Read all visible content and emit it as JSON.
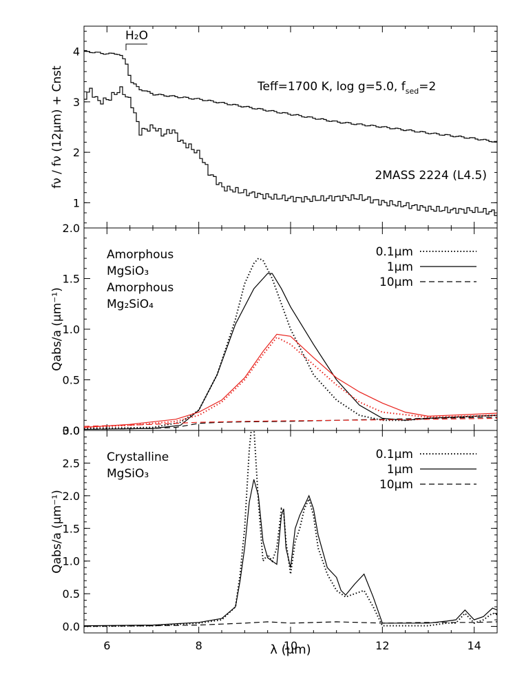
{
  "chart_data": [
    {
      "type": "line",
      "ylabel": "fν / fν (12μm) + Cnst",
      "xlim": [
        5.5,
        14.5
      ],
      "ylim": [
        0.5,
        4.5
      ],
      "yticks": [
        "1",
        "2",
        "3",
        "4"
      ],
      "grid": false,
      "annotations": {
        "h2o": "H₂O",
        "model_label": "Teff=1700 K, log g=5.0, f",
        "model_sub": "sed",
        "model_tail": "=2",
        "object_label": "2MASS 2224 (L4.5)"
      },
      "series": [
        {
          "style": "histogram",
          "color": "#000000",
          "x": [
            5.5,
            5.8,
            6.0,
            6.2,
            6.3,
            6.4,
            6.5,
            6.7,
            7.0,
            7.5,
            8.0,
            9.0,
            10.0,
            11.0,
            12.0,
            13.0,
            14.0,
            14.5
          ],
          "y": [
            4.0,
            3.97,
            3.95,
            3.96,
            3.9,
            3.75,
            3.4,
            3.25,
            3.15,
            3.1,
            3.05,
            2.9,
            2.75,
            2.6,
            2.5,
            2.38,
            2.27,
            2.2
          ]
        },
        {
          "style": "histogram",
          "color": "#000000",
          "x": [
            5.5,
            5.6,
            5.8,
            6.0,
            6.2,
            6.3,
            6.4,
            6.5,
            6.6,
            6.7,
            6.8,
            7.0,
            7.2,
            7.4,
            7.6,
            7.8,
            8.0,
            8.2,
            8.5,
            9.0,
            9.5,
            10.0,
            10.5,
            11.0,
            11.5,
            12.0,
            12.5,
            13.0,
            13.5,
            14.0,
            14.5
          ],
          "y": [
            3.1,
            3.25,
            3.0,
            3.05,
            3.2,
            3.25,
            3.1,
            3.0,
            2.7,
            2.4,
            2.45,
            2.5,
            2.35,
            2.45,
            2.2,
            2.1,
            1.95,
            1.6,
            1.3,
            1.2,
            1.12,
            1.08,
            1.07,
            1.1,
            1.1,
            1.0,
            0.95,
            0.88,
            0.85,
            0.85,
            0.8
          ]
        }
      ]
    },
    {
      "type": "line",
      "ylabel": "Qabs/a (μm⁻¹)",
      "xlim": [
        5.5,
        14.5
      ],
      "ylim": [
        0,
        2.0
      ],
      "yticks": [
        "0.0",
        "0.5",
        "1.0",
        "1.5",
        "2.0"
      ],
      "grid": false,
      "annotations": {
        "line1": "Amorphous",
        "line2": "MgSiO₃",
        "line3": "Amorphous",
        "line4": "Mg₂SiO₄"
      },
      "legend": [
        {
          "label": "0.1μm",
          "dash": "dotted"
        },
        {
          "label": "1μm",
          "dash": "solid"
        },
        {
          "label": "10μm",
          "dash": "dashed"
        }
      ],
      "series": [
        {
          "material": "Amorphous MgSiO₃",
          "grain": "0.1μm",
          "color": "#000000",
          "dash": "dotted",
          "x": [
            5.5,
            7.0,
            7.6,
            8.0,
            8.4,
            8.8,
            9.0,
            9.2,
            9.3,
            9.4,
            9.6,
            9.8,
            10.0,
            10.5,
            11.0,
            11.5,
            12.0,
            12.5,
            13.0,
            14.5
          ],
          "y": [
            0.02,
            0.03,
            0.08,
            0.2,
            0.55,
            1.1,
            1.45,
            1.65,
            1.7,
            1.68,
            1.5,
            1.25,
            1.0,
            0.55,
            0.3,
            0.15,
            0.1,
            0.1,
            0.12,
            0.15
          ]
        },
        {
          "material": "Amorphous MgSiO₃",
          "grain": "1μm",
          "color": "#000000",
          "dash": "solid",
          "x": [
            5.5,
            7.0,
            7.6,
            8.0,
            8.4,
            8.8,
            9.2,
            9.5,
            9.6,
            9.8,
            10.0,
            10.5,
            11.0,
            11.5,
            12.0,
            12.5,
            13.0,
            14.5
          ],
          "y": [
            0.01,
            0.02,
            0.05,
            0.2,
            0.55,
            1.05,
            1.4,
            1.55,
            1.55,
            1.4,
            1.22,
            0.85,
            0.5,
            0.25,
            0.12,
            0.1,
            0.12,
            0.15
          ]
        },
        {
          "material": "Amorphous MgSiO₃",
          "grain": "10μm",
          "color": "#000000",
          "dash": "dashed",
          "x": [
            5.5,
            7.0,
            7.5,
            8.0,
            8.5,
            9.0,
            10.0,
            11.0,
            12.0,
            13.0,
            14.5
          ],
          "y": [
            0.01,
            0.02,
            0.03,
            0.07,
            0.08,
            0.085,
            0.09,
            0.1,
            0.11,
            0.12,
            0.13
          ]
        },
        {
          "material": "Amorphous Mg₂SiO₄",
          "grain": "0.1μm",
          "color": "#e8201a",
          "dash": "dotted",
          "x": [
            5.5,
            6.5,
            7.5,
            8.0,
            8.5,
            9.0,
            9.4,
            9.7,
            10.0,
            10.5,
            11.0,
            11.5,
            12.0,
            13.0,
            14.5
          ],
          "y": [
            0.03,
            0.05,
            0.09,
            0.15,
            0.28,
            0.5,
            0.75,
            0.92,
            0.85,
            0.65,
            0.45,
            0.28,
            0.18,
            0.13,
            0.15
          ]
        },
        {
          "material": "Amorphous Mg₂SiO₄",
          "grain": "1μm",
          "color": "#e8201a",
          "dash": "solid",
          "x": [
            5.5,
            6.5,
            7.5,
            8.0,
            8.5,
            9.0,
            9.4,
            9.7,
            10.0,
            10.5,
            11.0,
            11.5,
            12.0,
            12.5,
            13.0,
            14.5
          ],
          "y": [
            0.03,
            0.06,
            0.11,
            0.18,
            0.3,
            0.52,
            0.78,
            0.95,
            0.93,
            0.72,
            0.52,
            0.38,
            0.27,
            0.18,
            0.14,
            0.17
          ]
        },
        {
          "material": "Amorphous Mg₂SiO₄",
          "grain": "10μm",
          "color": "#e8201a",
          "dash": "dashed",
          "x": [
            5.5,
            7.0,
            8.0,
            9.0,
            10.0,
            11.0,
            12.0,
            13.0,
            14.5
          ],
          "y": [
            0.04,
            0.06,
            0.08,
            0.09,
            0.095,
            0.1,
            0.105,
            0.11,
            0.12
          ]
        }
      ]
    },
    {
      "type": "line",
      "xlabel": "λ (μm)",
      "ylabel": "Qabs/a (μm⁻¹)",
      "xlim": [
        5.5,
        14.5
      ],
      "ylim": [
        -0.1,
        3.0
      ],
      "xticks": [
        "6",
        "8",
        "10",
        "12",
        "14"
      ],
      "yticks": [
        "0.0",
        "0.5",
        "1.0",
        "1.5",
        "2.0",
        "2.5",
        "3.0"
      ],
      "grid": false,
      "annotations": {
        "line1": "Crystalline",
        "line2": "MgSiO₃"
      },
      "legend": [
        {
          "label": "0.1μm",
          "dash": "dotted"
        },
        {
          "label": "1μm",
          "dash": "solid"
        },
        {
          "label": "10μm",
          "dash": "dashed"
        }
      ],
      "series": [
        {
          "material": "Crystalline MgSiO₃",
          "grain": "0.1μm",
          "color": "#000000",
          "dash": "dotted",
          "x": [
            5.5,
            7.0,
            8.0,
            8.5,
            8.8,
            8.9,
            9.0,
            9.1,
            9.15,
            9.2,
            9.3,
            9.4,
            9.5,
            9.6,
            9.7,
            9.8,
            9.85,
            9.9,
            10.0,
            10.1,
            10.2,
            10.3,
            10.4,
            10.5,
            10.6,
            10.8,
            11.0,
            11.1,
            11.2,
            11.4,
            11.6,
            11.8,
            12.0,
            13.0,
            13.4,
            13.6,
            13.8,
            14.0,
            14.2,
            14.4,
            14.5
          ],
          "y": [
            0.0,
            0.01,
            0.05,
            0.1,
            0.3,
            0.8,
            1.5,
            2.7,
            3.05,
            3.05,
            1.9,
            1.0,
            1.1,
            1.0,
            1.2,
            1.8,
            1.75,
            1.3,
            0.8,
            1.3,
            1.5,
            1.8,
            1.95,
            1.7,
            1.2,
            0.8,
            0.55,
            0.5,
            0.45,
            0.5,
            0.55,
            0.3,
            0.01,
            0.01,
            0.05,
            0.05,
            0.2,
            0.05,
            0.1,
            0.2,
            0.18
          ]
        },
        {
          "material": "Crystalline MgSiO₃",
          "grain": "1μm",
          "color": "#000000",
          "dash": "solid",
          "x": [
            5.5,
            7.0,
            8.0,
            8.5,
            8.8,
            8.9,
            9.0,
            9.1,
            9.2,
            9.3,
            9.4,
            9.5,
            9.6,
            9.7,
            9.8,
            9.85,
            9.9,
            10.0,
            10.1,
            10.2,
            10.3,
            10.4,
            10.5,
            10.6,
            10.8,
            11.0,
            11.1,
            11.2,
            11.4,
            11.6,
            11.8,
            12.0,
            13.0,
            13.4,
            13.6,
            13.8,
            14.0,
            14.2,
            14.4,
            14.5
          ],
          "y": [
            0.01,
            0.02,
            0.06,
            0.12,
            0.3,
            0.7,
            1.2,
            1.9,
            2.25,
            2.0,
            1.3,
            1.05,
            1.0,
            0.95,
            1.7,
            1.8,
            1.2,
            0.9,
            1.5,
            1.7,
            1.85,
            2.0,
            1.8,
            1.4,
            0.9,
            0.75,
            0.55,
            0.48,
            0.65,
            0.8,
            0.45,
            0.05,
            0.05,
            0.08,
            0.1,
            0.25,
            0.1,
            0.15,
            0.28,
            0.25
          ]
        },
        {
          "material": "Crystalline MgSiO₃",
          "grain": "10μm",
          "color": "#000000",
          "dash": "dashed",
          "x": [
            5.5,
            7.0,
            8.0,
            9.0,
            9.5,
            10.0,
            11.0,
            12.0,
            13.0,
            14.0,
            14.5
          ],
          "y": [
            0.0,
            0.01,
            0.02,
            0.05,
            0.07,
            0.05,
            0.07,
            0.05,
            0.06,
            0.06,
            0.07
          ]
        }
      ]
    }
  ]
}
